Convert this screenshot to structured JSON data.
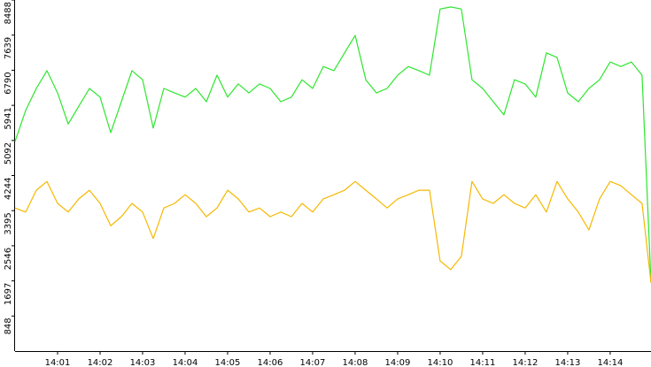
{
  "chart_data": {
    "type": "line",
    "xlim": [
      0,
      14.96
    ],
    "ylim": [
      0,
      8488
    ],
    "xticks": [
      {
        "value": 1,
        "label": "14:01"
      },
      {
        "value": 2,
        "label": "14:02"
      },
      {
        "value": 3,
        "label": "14:03"
      },
      {
        "value": 4,
        "label": "14:04"
      },
      {
        "value": 5,
        "label": "14:05"
      },
      {
        "value": 6,
        "label": "14:06"
      },
      {
        "value": 7,
        "label": "14:07"
      },
      {
        "value": 8,
        "label": "14:08"
      },
      {
        "value": 9,
        "label": "14:09"
      },
      {
        "value": 10,
        "label": "14:10"
      },
      {
        "value": 11,
        "label": "14:11"
      },
      {
        "value": 12,
        "label": "14:12"
      },
      {
        "value": 13,
        "label": "14:13"
      },
      {
        "value": 14,
        "label": "14:14"
      }
    ],
    "yticks": [
      848,
      1697,
      2546,
      3395,
      4244,
      5092,
      5941,
      6790,
      7639,
      8488
    ],
    "x": [
      0,
      0.25,
      0.5,
      0.75,
      1,
      1.25,
      1.5,
      1.75,
      2,
      2.25,
      2.5,
      2.75,
      3,
      3.25,
      3.5,
      3.75,
      4,
      4.25,
      4.5,
      4.75,
      5,
      5.25,
      5.5,
      5.75,
      6,
      6.25,
      6.5,
      6.75,
      7,
      7.25,
      7.5,
      7.75,
      8,
      8.25,
      8.5,
      8.75,
      9,
      9.25,
      9.5,
      9.75,
      10,
      10.25,
      10.5,
      10.75,
      11,
      11.25,
      11.5,
      11.75,
      12,
      12.25,
      12.5,
      12.75,
      13,
      13.25,
      13.5,
      13.75,
      14,
      14.25,
      14.5,
      14.75,
      14.96
    ],
    "series": [
      {
        "color": "#2ee62e",
        "values": [
          5070,
          5820,
          6350,
          6780,
          6240,
          5490,
          5920,
          6350,
          6140,
          5280,
          6030,
          6780,
          6560,
          5390,
          6350,
          6240,
          6140,
          6350,
          6030,
          6670,
          6140,
          6460,
          6240,
          6460,
          6350,
          6030,
          6140,
          6560,
          6350,
          6880,
          6780,
          7210,
          7630,
          6560,
          6240,
          6350,
          6670,
          6880,
          6780,
          6670,
          8270,
          8320,
          8270,
          6560,
          6350,
          6030,
          5710,
          6560,
          6460,
          6140,
          7210,
          7100,
          6240,
          6030,
          6350,
          6560,
          6990,
          6880,
          6990,
          6670,
          1650
        ]
      },
      {
        "color": "#f5b800",
        "values": [
          3460,
          3360,
          3890,
          4100,
          3570,
          3360,
          3680,
          3890,
          3570,
          3030,
          3250,
          3570,
          3360,
          2720,
          3460,
          3570,
          3780,
          3570,
          3250,
          3460,
          3890,
          3680,
          3360,
          3460,
          3250,
          3360,
          3250,
          3570,
          3360,
          3680,
          3780,
          3890,
          4100,
          3890,
          3680,
          3460,
          3680,
          3780,
          3890,
          3890,
          2180,
          1970,
          2290,
          4100,
          3680,
          3570,
          3780,
          3570,
          3460,
          3780,
          3360,
          4100,
          3680,
          3360,
          2930,
          3680,
          4100,
          4000,
          3780,
          3570,
          1650
        ]
      }
    ]
  }
}
